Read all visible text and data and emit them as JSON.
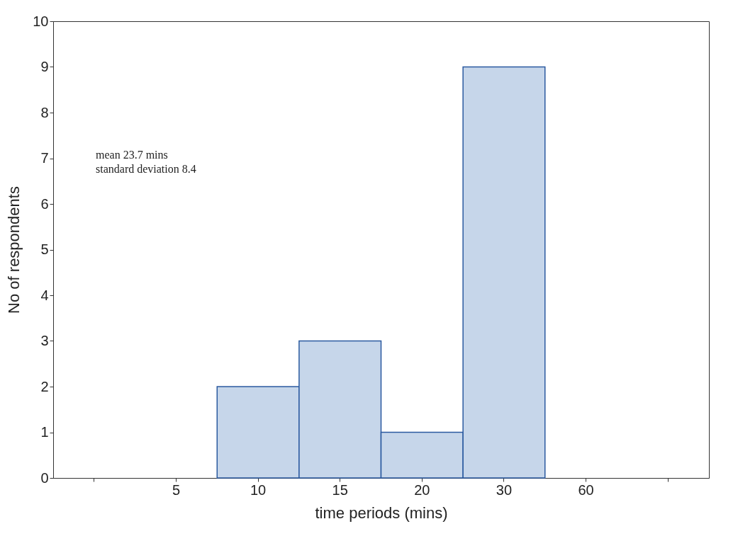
{
  "chart_data": {
    "type": "bar",
    "xlabel": "time periods (mins)",
    "ylabel": "No of respondents",
    "categories": [
      null,
      "5",
      "10",
      "15",
      "20",
      "30",
      "60",
      null
    ],
    "values": [
      null,
      0,
      2,
      3,
      1,
      9,
      0,
      null
    ],
    "color": "#c6d6ea",
    "ylim": [
      0,
      10
    ],
    "yticks": [
      0,
      1,
      2,
      3,
      4,
      5,
      6,
      7,
      8,
      9,
      10
    ],
    "grid": false,
    "annotations": [
      "mean 23.7 mins",
      "standard deviation 8.4"
    ]
  }
}
